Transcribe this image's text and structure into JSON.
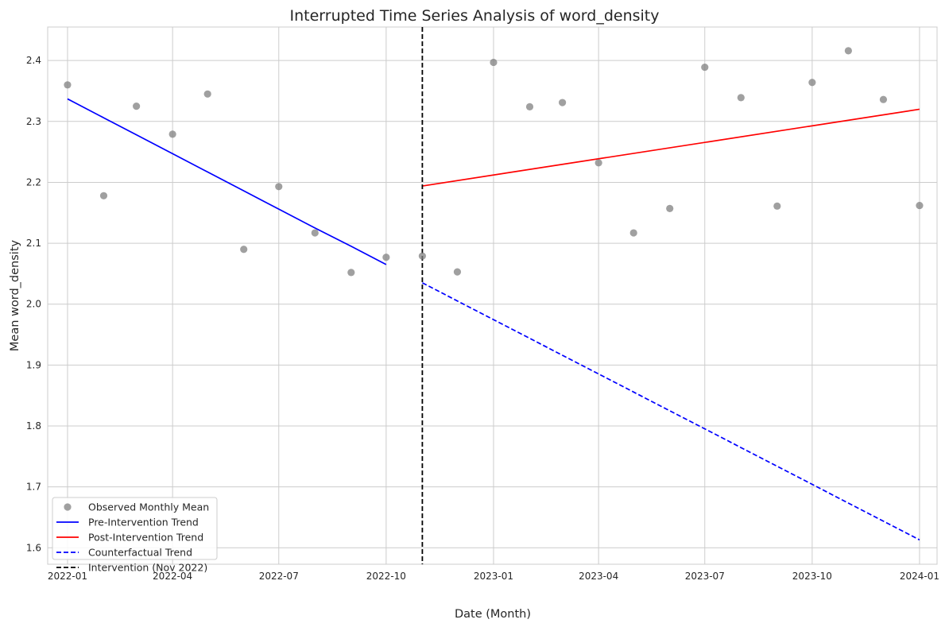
{
  "chart_data": {
    "type": "scatter",
    "title": "Interrupted Time Series Analysis of word_density",
    "xlabel": "Date (Month)",
    "ylabel": "Mean word_density",
    "xlim": [
      "2021-12-15",
      "2024-01-16"
    ],
    "ylim": [
      1.573,
      2.455
    ],
    "grid": true,
    "legend_position": "lower-left",
    "x_ticks": [
      "2022-01",
      "2022-04",
      "2022-07",
      "2022-10",
      "2023-01",
      "2023-04",
      "2023-07",
      "2023-10",
      "2024-01"
    ],
    "y_ticks": [
      "1.6",
      "1.7",
      "1.8",
      "1.9",
      "2.0",
      "2.1",
      "2.2",
      "2.3",
      "2.4"
    ],
    "observed": {
      "name": "Observed Monthly Mean",
      "color": "#808080",
      "x": [
        "2022-01-01",
        "2022-02-01",
        "2022-03-01",
        "2022-04-01",
        "2022-05-01",
        "2022-06-01",
        "2022-07-01",
        "2022-08-01",
        "2022-09-01",
        "2022-10-01",
        "2022-11-01",
        "2022-12-01",
        "2023-01-01",
        "2023-02-01",
        "2023-03-01",
        "2023-04-01",
        "2023-05-01",
        "2023-06-01",
        "2023-07-01",
        "2023-08-01",
        "2023-09-01",
        "2023-10-01",
        "2023-11-01",
        "2023-12-01",
        "2024-01-01"
      ],
      "y": [
        2.36,
        2.178,
        2.325,
        2.279,
        2.345,
        2.09,
        2.193,
        2.117,
        2.052,
        2.077,
        2.079,
        2.053,
        2.397,
        2.324,
        2.331,
        2.232,
        2.117,
        2.157,
        2.389,
        2.339,
        2.161,
        2.364,
        2.416,
        2.336,
        2.162
      ]
    },
    "lines": [
      {
        "name": "Pre-Intervention Trend",
        "color": "#0000ff",
        "dash": "solid",
        "x": [
          "2022-01-01",
          "2022-02-01",
          "2022-03-01",
          "2022-04-01",
          "2022-05-01",
          "2022-06-01",
          "2022-07-01",
          "2022-08-01",
          "2022-09-01",
          "2022-10-01"
        ],
        "y": [
          2.337,
          2.306,
          2.278,
          2.247,
          2.217,
          2.186,
          2.156,
          2.125,
          2.095,
          2.065
        ]
      },
      {
        "name": "Post-Intervention Trend",
        "color": "#ff0000",
        "dash": "solid",
        "x": [
          "2022-11-01",
          "2024-01-01"
        ],
        "y": [
          2.194,
          2.32
        ]
      },
      {
        "name": "Counterfactual Trend",
        "color": "#0000ff",
        "dash": "dashed",
        "x": [
          "2022-11-01",
          "2024-01-01"
        ],
        "y": [
          2.035,
          1.613
        ]
      }
    ],
    "intervention": {
      "name": "Intervention (Nov 2022)",
      "date": "2022-11-01",
      "color": "#000000",
      "dash": "dashed"
    }
  }
}
